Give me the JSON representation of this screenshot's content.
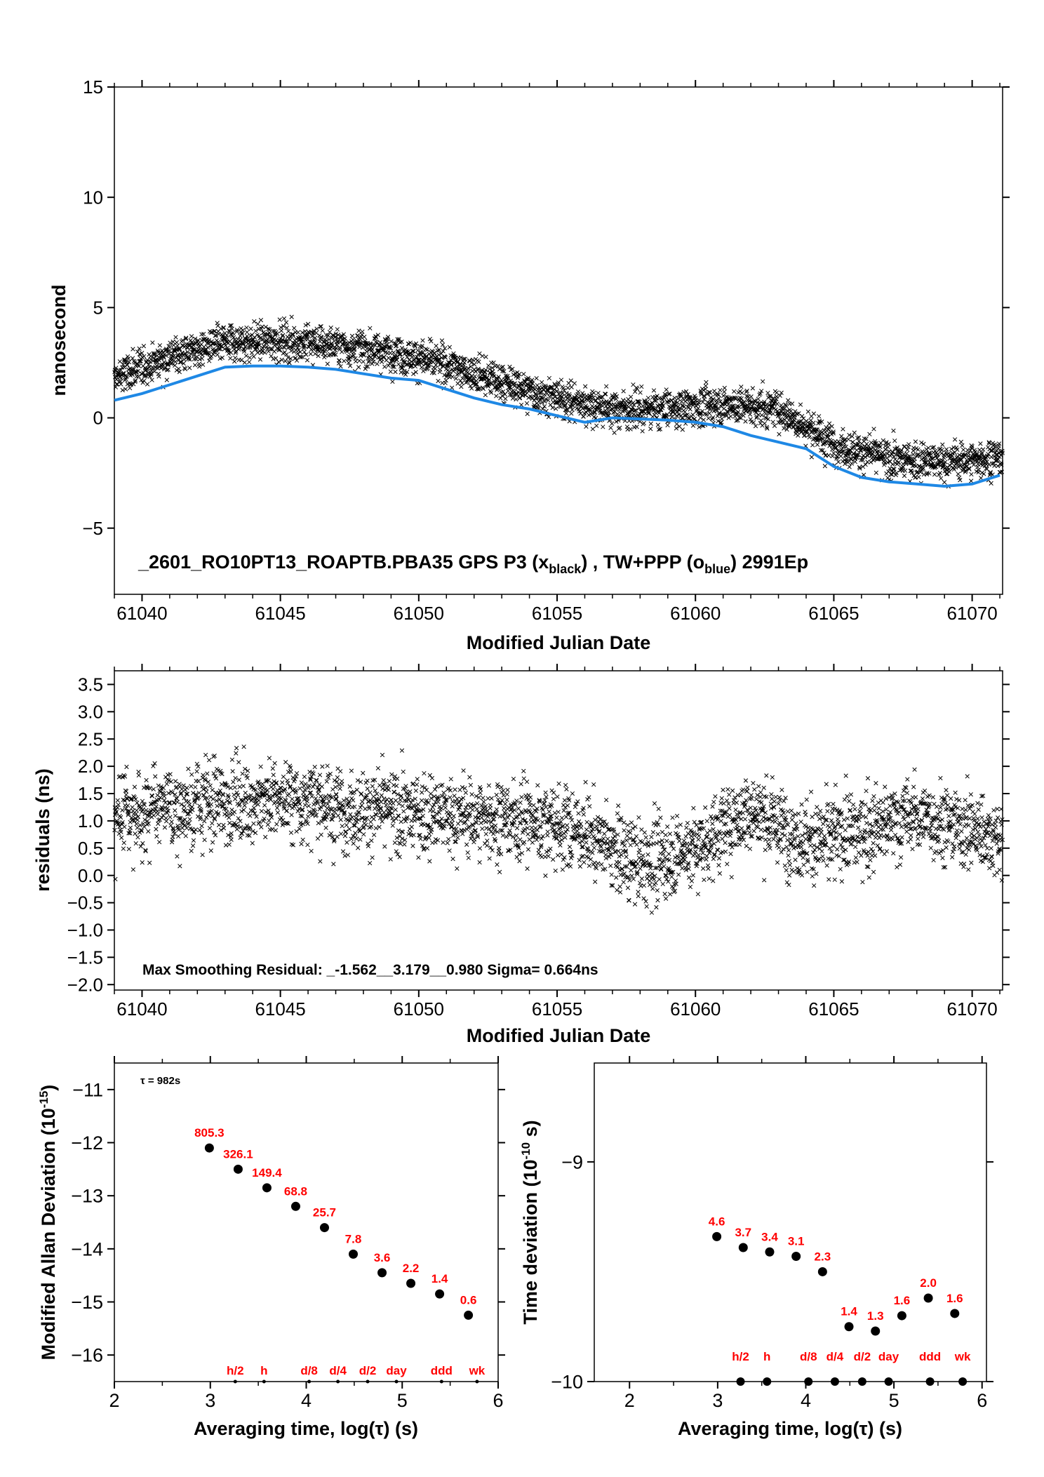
{
  "colors": {
    "black": "#000000",
    "blue": "#1e88e5",
    "red": "#ff0000"
  },
  "chart_data": [
    {
      "type": "scatter",
      "title": "_2601_RO10PT13_ROAPTB.PBA35    GPS P3 (x",
      "title_sub1": "black",
      "title_mid": ") ,  TW+PPP (o",
      "title_sub2": "blue",
      "title_end": ")  2991Ep",
      "xlabel": "Modified Julian Date",
      "ylabel": "nanosecond",
      "xlim": [
        61039,
        61071.1
      ],
      "ylim": [
        -8,
        15
      ],
      "xticks": [
        61040,
        61045,
        61050,
        61055,
        61060,
        61065,
        61070
      ],
      "yticks": [
        -5,
        0,
        5,
        10,
        15
      ],
      "ytick_labels": [
        "−5",
        "0",
        "5",
        "10",
        "15"
      ],
      "series": [
        {
          "marker": "x",
          "color": "#000000",
          "note": "dense scatter of ~2991 points around trend",
          "trend_x": [
            61039,
            61041,
            61043,
            61045,
            61047,
            61049,
            61051,
            61053,
            61055,
            61057,
            61059,
            61061,
            61063,
            61065,
            61067,
            61069,
            61071
          ],
          "trend_y": [
            1.8,
            2.8,
            3.4,
            3.5,
            3.3,
            3.0,
            2.4,
            1.6,
            0.9,
            0.4,
            0.4,
            0.6,
            0.4,
            -1.2,
            -1.9,
            -2.0,
            -1.8
          ],
          "spread": 0.7
        },
        {
          "marker": "line",
          "color": "#1e88e5",
          "x": [
            61039,
            61040,
            61041,
            61042,
            61043,
            61044,
            61045,
            61046,
            61047,
            61048,
            61049,
            61050,
            61051,
            61052,
            61053,
            61054,
            61055,
            61056,
            61057,
            61058,
            61059,
            61060,
            61061,
            61062,
            61063,
            61064,
            61065,
            61066,
            61067,
            61068,
            61069,
            61070,
            61071
          ],
          "y": [
            0.8,
            1.1,
            1.5,
            1.9,
            2.3,
            2.35,
            2.35,
            2.3,
            2.2,
            2.0,
            1.8,
            1.7,
            1.3,
            0.9,
            0.6,
            0.4,
            0.1,
            -0.2,
            0.0,
            -0.05,
            -0.1,
            -0.2,
            -0.4,
            -0.8,
            -1.1,
            -1.4,
            -2.2,
            -2.7,
            -2.9,
            -3.0,
            -3.1,
            -3.0,
            -2.6
          ]
        }
      ]
    },
    {
      "type": "scatter",
      "annotation": "Max Smoothing Residual: _-1.562__3.179__0.980  Sigma= 0.664ns",
      "xlabel": "Modified Julian Date",
      "ylabel": "residuals (ns)",
      "xlim": [
        61039,
        61071.1
      ],
      "ylim": [
        -2.1,
        3.75
      ],
      "xticks": [
        61040,
        61045,
        61050,
        61055,
        61060,
        61065,
        61070
      ],
      "yticks": [
        -2.0,
        -1.5,
        -1.0,
        -0.5,
        0.0,
        0.5,
        1.0,
        1.5,
        2.0,
        2.5,
        3.0,
        3.5
      ],
      "ytick_labels": [
        "−2.0",
        "−1.5",
        "−1.0",
        "−0.5",
        "0.0",
        "0.5",
        "1.0",
        "1.5",
        "2.0",
        "2.5",
        "3.0",
        "3.5"
      ],
      "series": [
        {
          "marker": "x",
          "color": "#000000",
          "trend_x": [
            61039,
            61042,
            61045,
            61048,
            61051,
            61054,
            61056,
            61058,
            61060,
            61062,
            61064,
            61066,
            61068,
            61071
          ],
          "trend_y": [
            1.1,
            1.3,
            1.4,
            1.2,
            1.1,
            1.0,
            0.8,
            0.2,
            0.5,
            1.2,
            0.6,
            0.8,
            1.1,
            0.7
          ],
          "spread": 0.6
        }
      ]
    },
    {
      "type": "scatter",
      "annotation": "τ = 982s",
      "xlabel": "Averaging time, log(τ) (s)",
      "ylabel": "Modified Allan Deviation (10",
      "ylabel_sup": "-15",
      "ylabel_end": ")",
      "xlim": [
        2,
        6
      ],
      "ylim": [
        -16.5,
        -10.5
      ],
      "xticks": [
        2,
        3,
        4,
        5,
        6
      ],
      "yticks": [
        -16,
        -15,
        -14,
        -13,
        -12,
        -11
      ],
      "ytick_labels": [
        "−16",
        "−15",
        "−14",
        "−13",
        "−12",
        "−11"
      ],
      "points_x": [
        2.99,
        3.29,
        3.59,
        3.89,
        4.19,
        4.49,
        4.79,
        5.09,
        5.39,
        5.69
      ],
      "points_y": [
        -12.1,
        -12.5,
        -12.85,
        -13.2,
        -13.6,
        -14.1,
        -14.45,
        -14.65,
        -14.85,
        -15.25
      ],
      "point_labels": [
        "805.3",
        "326.1",
        "149.4",
        "68.8",
        "25.7",
        "7.8",
        "3.6",
        "2.2",
        "1.4",
        "0.6"
      ],
      "marker_labels": [
        "h/2",
        "h",
        "d/8",
        "d/4",
        "d/2",
        "day",
        "ddd",
        "wk"
      ],
      "marker_x": [
        3.26,
        3.56,
        4.03,
        4.33,
        4.64,
        4.94,
        5.41,
        5.78
      ]
    },
    {
      "type": "scatter",
      "xlabel": "Averaging time, log(τ) (s)",
      "ylabel": "Time deviation (10",
      "ylabel_sup": "-10",
      "ylabel_end": " s)",
      "xlim": [
        1.6,
        6.05
      ],
      "ylim": [
        -10.0,
        -8.55
      ],
      "xticks": [
        2,
        3,
        4,
        5,
        6
      ],
      "yticks": [
        -10,
        -9
      ],
      "ytick_labels": [
        "−10",
        "−9"
      ],
      "points_x": [
        2.99,
        3.29,
        3.59,
        3.89,
        4.19,
        4.49,
        4.79,
        5.09,
        5.39,
        5.69
      ],
      "points_y": [
        -9.34,
        -9.39,
        -9.41,
        -9.43,
        -9.5,
        -9.75,
        -9.77,
        -9.7,
        -9.62,
        -9.69
      ],
      "point_labels": [
        "4.6",
        "3.7",
        "3.4",
        "3.1",
        "2.3",
        "1.4",
        "1.3",
        "1.6",
        "2.0",
        "1.6"
      ],
      "marker_labels": [
        "h/2",
        "h",
        "d/8",
        "d/4",
        "d/2",
        "day",
        "ddd",
        "wk"
      ],
      "marker_x": [
        3.26,
        3.56,
        4.03,
        4.33,
        4.64,
        4.94,
        5.41,
        5.78
      ]
    }
  ]
}
